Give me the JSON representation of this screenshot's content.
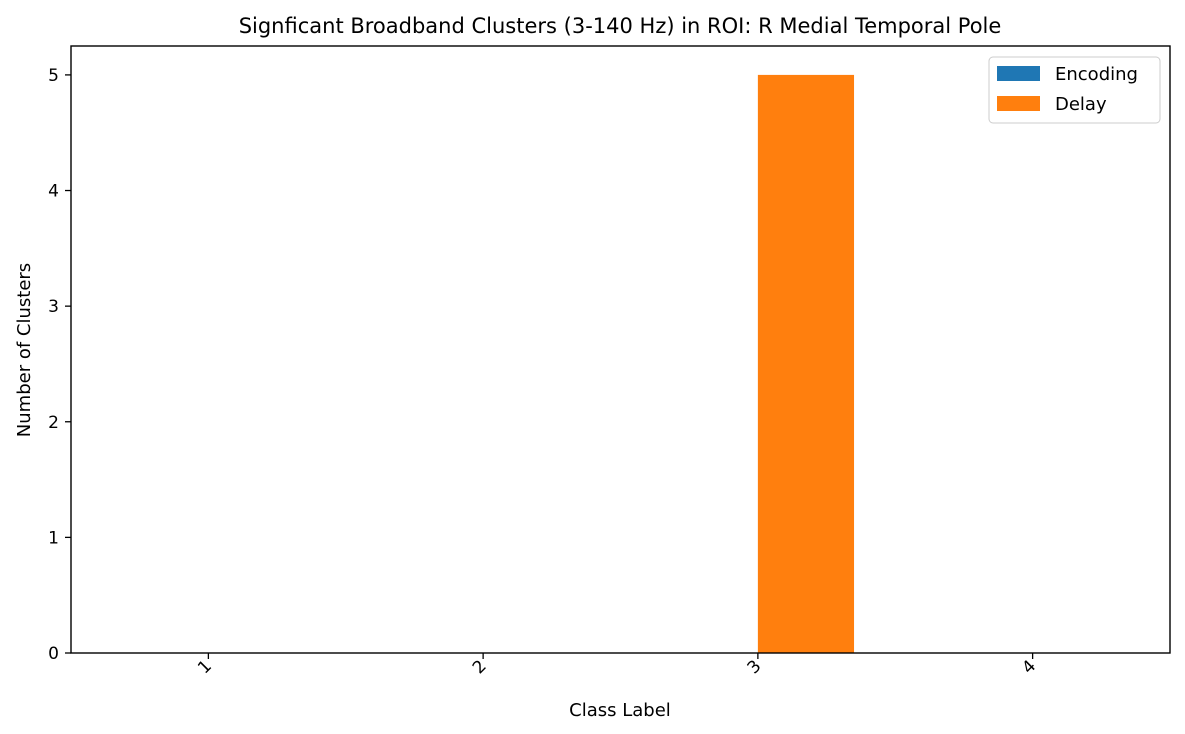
{
  "chart_data": {
    "type": "bar",
    "title": "Signficant Broadband Clusters (3-140 Hz) in ROI: R Medial Temporal Pole",
    "xlabel": "Class Label",
    "ylabel": "Number of Clusters",
    "categories": [
      "1",
      "2",
      "3",
      "4"
    ],
    "series": [
      {
        "name": "Encoding",
        "color": "#1f77b4",
        "values": [
          0,
          0,
          0,
          0
        ]
      },
      {
        "name": "Delay",
        "color": "#ff7f0e",
        "values": [
          0,
          0,
          5,
          0
        ]
      }
    ],
    "ylim": [
      0,
      5.25
    ],
    "yticks": [
      0,
      1,
      2,
      3,
      4,
      5
    ],
    "grid": false,
    "legend_position": "top-right"
  }
}
